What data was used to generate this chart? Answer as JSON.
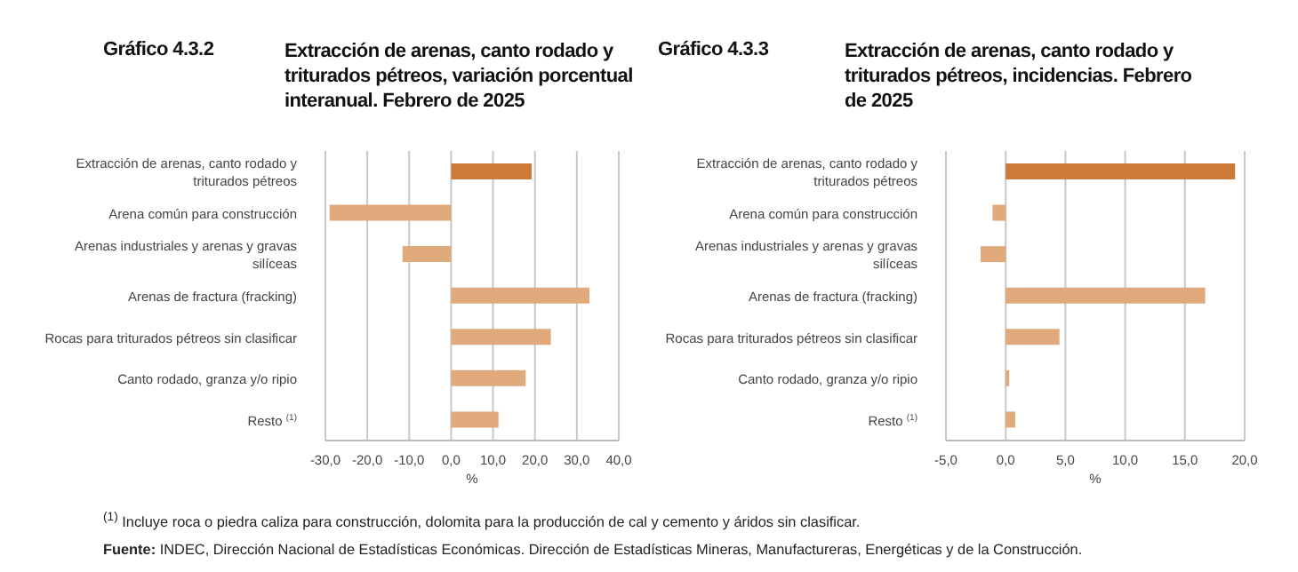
{
  "chart_data": [
    {
      "type": "bar",
      "orientation": "horizontal",
      "title": "Gráfico 4.3.2",
      "subtitle": "Extracción de arenas, canto rodado y triturados pétreos, variación porcentual interanual. Febrero de 2025",
      "categories": [
        "Extracción de arenas, canto rodado y triturados pétreos",
        "Arena común para construcción",
        "Arenas industriales y arenas y gravas silíceas",
        "Arenas de fractura (fracking)",
        "Rocas para triturados pétreos sin clasificar",
        "Canto rodado, granza y/o ripio",
        "Resto $^{(1)}$"
      ],
      "values": [
        19.2,
        -29.0,
        -11.6,
        33.0,
        23.8,
        17.8,
        11.3
      ],
      "colors": [
        "#cc7a3a",
        "#e0aa7c",
        "#e0aa7c",
        "#e0aa7c",
        "#e0aa7c",
        "#e0aa7c",
        "#e0aa7c"
      ],
      "xlim": [
        -30,
        40
      ],
      "xticks": [
        {
          "value": -30,
          "label": "-30,0"
        },
        {
          "value": -20,
          "label": "-20,0"
        },
        {
          "value": -10,
          "label": "-10,0"
        },
        {
          "value": 0,
          "label": "0,0"
        },
        {
          "value": 10,
          "label": "10,0"
        },
        {
          "value": 20,
          "label": "20,0"
        },
        {
          "value": 30,
          "label": "30,0"
        },
        {
          "value": 40,
          "label": "40,0"
        }
      ],
      "xlabel": "%",
      "grid": "x",
      "legend": false,
      "annotations": [
        "$^{(1)}$ Incluye roca o piedra caliza para construcción, dolomita para la producción de cal y cemento y áridos sin clasificar.",
        "Fuente: INDEC, Dirección Nacional de Estadísticas Económicas. Dirección de Estadísticas Mineras, Manufactureras, Energéticas y de la Construcción."
      ]
    },
    {
      "type": "bar",
      "orientation": "horizontal",
      "title": "Gráfico 4.3.3",
      "subtitle": "Extracción de arenas, canto rodado y triturados pétreos, incidencias. Febrero de 2025",
      "categories": [
        "Extracción de arenas, canto rodado y triturados pétreos",
        "Arena común para construcción",
        "Arenas industriales y arenas y gravas silíceas",
        "Arenas de fractura (fracking)",
        "Rocas para triturados pétreos sin clasificar",
        "Canto rodado, granza y/o ripio",
        "Resto $^{(1)}$"
      ],
      "values": [
        19.2,
        -1.1,
        -2.1,
        16.7,
        4.5,
        0.3,
        0.8
      ],
      "colors": [
        "#cc7a3a",
        "#e0aa7c",
        "#e0aa7c",
        "#e0aa7c",
        "#e0aa7c",
        "#e0aa7c",
        "#e0aa7c"
      ],
      "xlim": [
        -5,
        20
      ],
      "xticks": [
        {
          "value": -5,
          "label": "-5,0"
        },
        {
          "value": 0,
          "label": "0,0"
        },
        {
          "value": 5,
          "label": "5,0"
        },
        {
          "value": 10,
          "label": "10,0"
        },
        {
          "value": 15,
          "label": "15,0"
        },
        {
          "value": 20,
          "label": "20,0"
        }
      ],
      "xlabel": "%",
      "grid": "x",
      "legend": false
    }
  ]
}
